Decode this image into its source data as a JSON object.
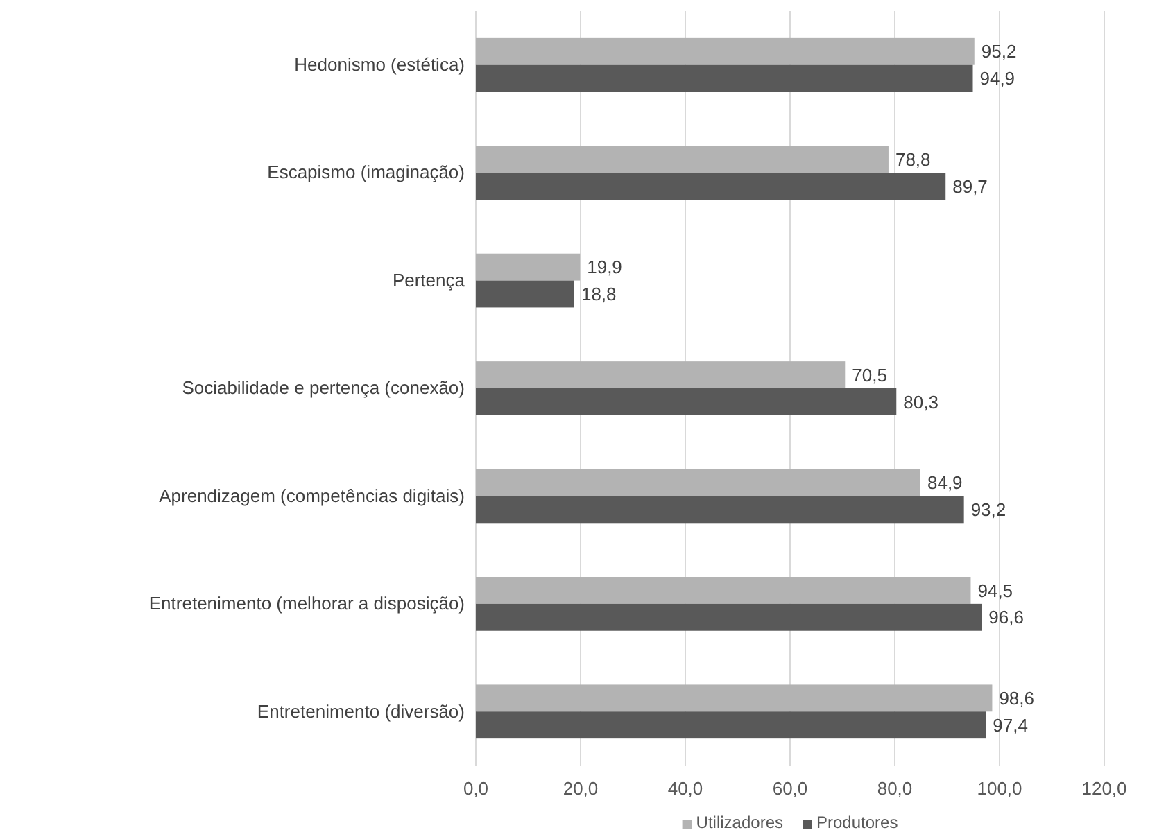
{
  "chart_data": {
    "type": "bar",
    "orientation": "horizontal",
    "categories": [
      "Hedonismo (estética)",
      "Escapismo (imaginação)",
      "Pertença",
      "Sociabilidade e pertença (conexão)",
      "Aprendizagem (competências digitais)",
      "Entretenimento (melhorar a disposição)",
      "Entretenimento (diversão)"
    ],
    "series": [
      {
        "name": "Utilizadores",
        "color": "#b3b3b3",
        "values": [
          95.2,
          78.8,
          19.9,
          70.5,
          84.9,
          94.5,
          98.6
        ],
        "value_labels": [
          "95,2",
          "78,8",
          "19,9",
          "70,5",
          "84,9",
          "94,5",
          "98,6"
        ]
      },
      {
        "name": "Produtores",
        "color": "#595959",
        "values": [
          94.9,
          89.7,
          18.8,
          80.3,
          93.2,
          96.6,
          97.4
        ],
        "value_labels": [
          "94,9",
          "89,7",
          "18,8",
          "80,3",
          "93,2",
          "96,6",
          "97,4"
        ]
      }
    ],
    "xlim": [
      0,
      120
    ],
    "xticks": [
      {
        "value": 0,
        "label": "0,0"
      },
      {
        "value": 20,
        "label": "20,0"
      },
      {
        "value": 40,
        "label": "40,0"
      },
      {
        "value": 60,
        "label": "60,0"
      },
      {
        "value": 80,
        "label": "80,0"
      },
      {
        "value": 100,
        "label": "100,0"
      },
      {
        "value": 120,
        "label": "120,0"
      }
    ],
    "grid": "x",
    "legend": "bottom"
  }
}
